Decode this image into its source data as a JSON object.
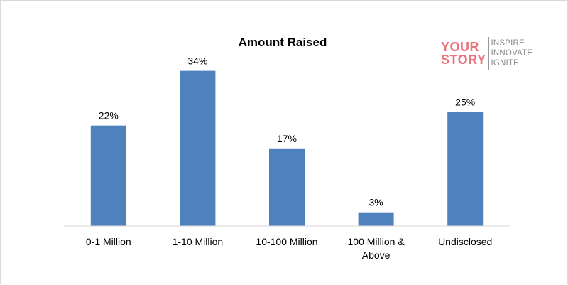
{
  "chart_data": {
    "type": "bar",
    "title": "Amount Raised",
    "categories": [
      [
        "0-1 Million"
      ],
      [
        "1-10 Million"
      ],
      [
        "10-100 Million"
      ],
      [
        "100 Million &",
        "Above"
      ],
      [
        "Undisclosed"
      ]
    ],
    "values": [
      22,
      34,
      17,
      3,
      25
    ],
    "value_labels": [
      "22%",
      "34%",
      "17%",
      "3%",
      "25%"
    ],
    "ylim": [
      0,
      40
    ],
    "grid": false,
    "bar_color": "#4f81bd"
  },
  "logo": {
    "main_lines": [
      "YOUR",
      "STORY"
    ],
    "tagline_lines": [
      "INSPIRE",
      "INNOVATE",
      "IGNITE"
    ],
    "brand_color": "#e8737a",
    "tag_color": "#8a8a8a"
  }
}
